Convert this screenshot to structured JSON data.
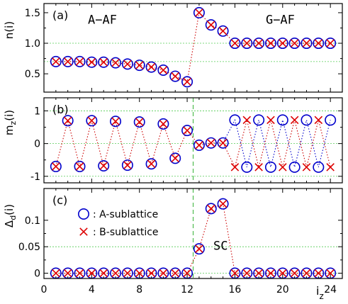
{
  "chart_data": [
    {
      "type": "scatter",
      "panel_label": "(a)",
      "ylabel_main": "n(i)",
      "x": [
        1,
        2,
        3,
        4,
        5,
        6,
        7,
        8,
        9,
        10,
        11,
        12,
        13,
        14,
        15,
        16,
        17,
        18,
        19,
        20,
        21,
        22,
        23,
        24
      ],
      "xlim": [
        0,
        25
      ],
      "ylim": [
        0.2,
        1.65
      ],
      "yticks": [
        0.5,
        1.0,
        1.5
      ],
      "ytick_labels": [
        "0.5",
        "1.0",
        "1.5"
      ],
      "series": [
        {
          "marker": "circle",
          "color": "#0000cc",
          "line_color": "#cc0000",
          "values": [
            0.7,
            0.7,
            0.7,
            0.69,
            0.69,
            0.68,
            0.66,
            0.64,
            0.61,
            0.56,
            0.46,
            0.37,
            1.5,
            1.3,
            1.2,
            1.0,
            1.0,
            1.0,
            1.0,
            1.0,
            1.0,
            1.0,
            1.0,
            1.0
          ]
        },
        {
          "marker": "cross",
          "color": "#dd0000",
          "values": [
            0.7,
            0.7,
            0.7,
            0.69,
            0.69,
            0.68,
            0.66,
            0.64,
            0.61,
            0.56,
            0.46,
            0.37,
            1.5,
            1.3,
            1.2,
            1.0,
            1.0,
            1.0,
            1.0,
            1.0,
            1.0,
            1.0,
            1.0,
            1.0
          ]
        }
      ],
      "hlines": [
        1.0,
        0.7
      ],
      "annotations": [
        {
          "text": "A−AF",
          "x": 4.9,
          "y": 1.32
        },
        {
          "text": "G−AF",
          "x": 19.8,
          "y": 1.32
        }
      ],
      "grid": false
    },
    {
      "type": "scatter",
      "panel_label": "(b)",
      "ylabel_main": "m",
      "ylabel_sub": "z",
      "ylabel_tail": "(i)",
      "x": [
        1,
        2,
        3,
        4,
        5,
        6,
        7,
        8,
        9,
        10,
        11,
        12,
        13,
        14,
        15,
        16,
        17,
        18,
        19,
        20,
        21,
        22,
        23,
        24
      ],
      "xlim": [
        0,
        25
      ],
      "ylim": [
        -1.2,
        1.4
      ],
      "yticks": [
        -1,
        0,
        1
      ],
      "ytick_labels": [
        "-1",
        "0",
        "1"
      ],
      "series": [
        {
          "marker": "circle",
          "color": "#0000cc",
          "line_color": "#cc0000",
          "values": [
            -0.7,
            0.7,
            -0.7,
            0.7,
            -0.68,
            0.68,
            -0.66,
            0.66,
            -0.62,
            0.6,
            -0.45,
            0.4,
            -0.05,
            0.02,
            0.02,
            0.72,
            -0.72,
            0.72,
            -0.72,
            0.72,
            -0.72,
            0.72,
            -0.72,
            0.72
          ]
        },
        {
          "marker": "cross",
          "color": "#dd0000",
          "line_color": "#0000cc",
          "values": [
            -0.7,
            0.7,
            -0.7,
            0.7,
            -0.68,
            0.68,
            -0.66,
            0.66,
            -0.62,
            0.6,
            -0.45,
            0.4,
            -0.05,
            0.02,
            0.02,
            -0.72,
            0.72,
            -0.72,
            0.72,
            -0.72,
            0.72,
            -0.72,
            0.72,
            -0.72
          ]
        }
      ],
      "hlines": [
        1.0,
        0.0,
        -1.0
      ],
      "vline": 12.5,
      "grid": false
    },
    {
      "type": "scatter",
      "panel_label": "(c)",
      "ylabel_main": "Δ",
      "ylabel_sub": "d",
      "ylabel_tail": "(i)",
      "xlabel_main": "i",
      "xlabel_sub": "z",
      "x": [
        1,
        2,
        3,
        4,
        5,
        6,
        7,
        8,
        9,
        10,
        11,
        12,
        13,
        14,
        15,
        16,
        17,
        18,
        19,
        20,
        21,
        22,
        23,
        24
      ],
      "xlim": [
        0,
        25
      ],
      "xticks": [
        0,
        4,
        8,
        12,
        16,
        20,
        24
      ],
      "xtick_labels": [
        "0",
        "4",
        "8",
        "12",
        "16",
        "20",
        "24"
      ],
      "ylim": [
        -0.01,
        0.16
      ],
      "yticks": [
        0,
        0.05,
        0.1
      ],
      "ytick_labels": [
        "0",
        "0.05",
        "0.1"
      ],
      "series": [
        {
          "name": ": A-sublattice",
          "marker": "circle",
          "color": "#0000cc",
          "line_color": "#cc0000",
          "values": [
            0,
            0,
            0,
            0,
            0,
            0,
            0,
            0,
            0,
            0,
            0,
            0,
            0.046,
            0.122,
            0.131,
            0,
            0,
            0,
            0,
            0,
            0,
            0,
            0,
            0
          ]
        },
        {
          "name": ": B-sublattice",
          "marker": "cross",
          "color": "#dd0000",
          "values": [
            0,
            0,
            0,
            0,
            0,
            0,
            0,
            0,
            0,
            0,
            0,
            0,
            0.046,
            0.122,
            0.131,
            0,
            0,
            0,
            0,
            0,
            0,
            0,
            0,
            0
          ]
        }
      ],
      "hlines": [
        0.05,
        0.0
      ],
      "vline": 12.5,
      "annotations": [
        {
          "text": "SC",
          "x": 14.8,
          "y": 0.044
        }
      ],
      "legend_position": "top-left",
      "grid": false
    }
  ]
}
